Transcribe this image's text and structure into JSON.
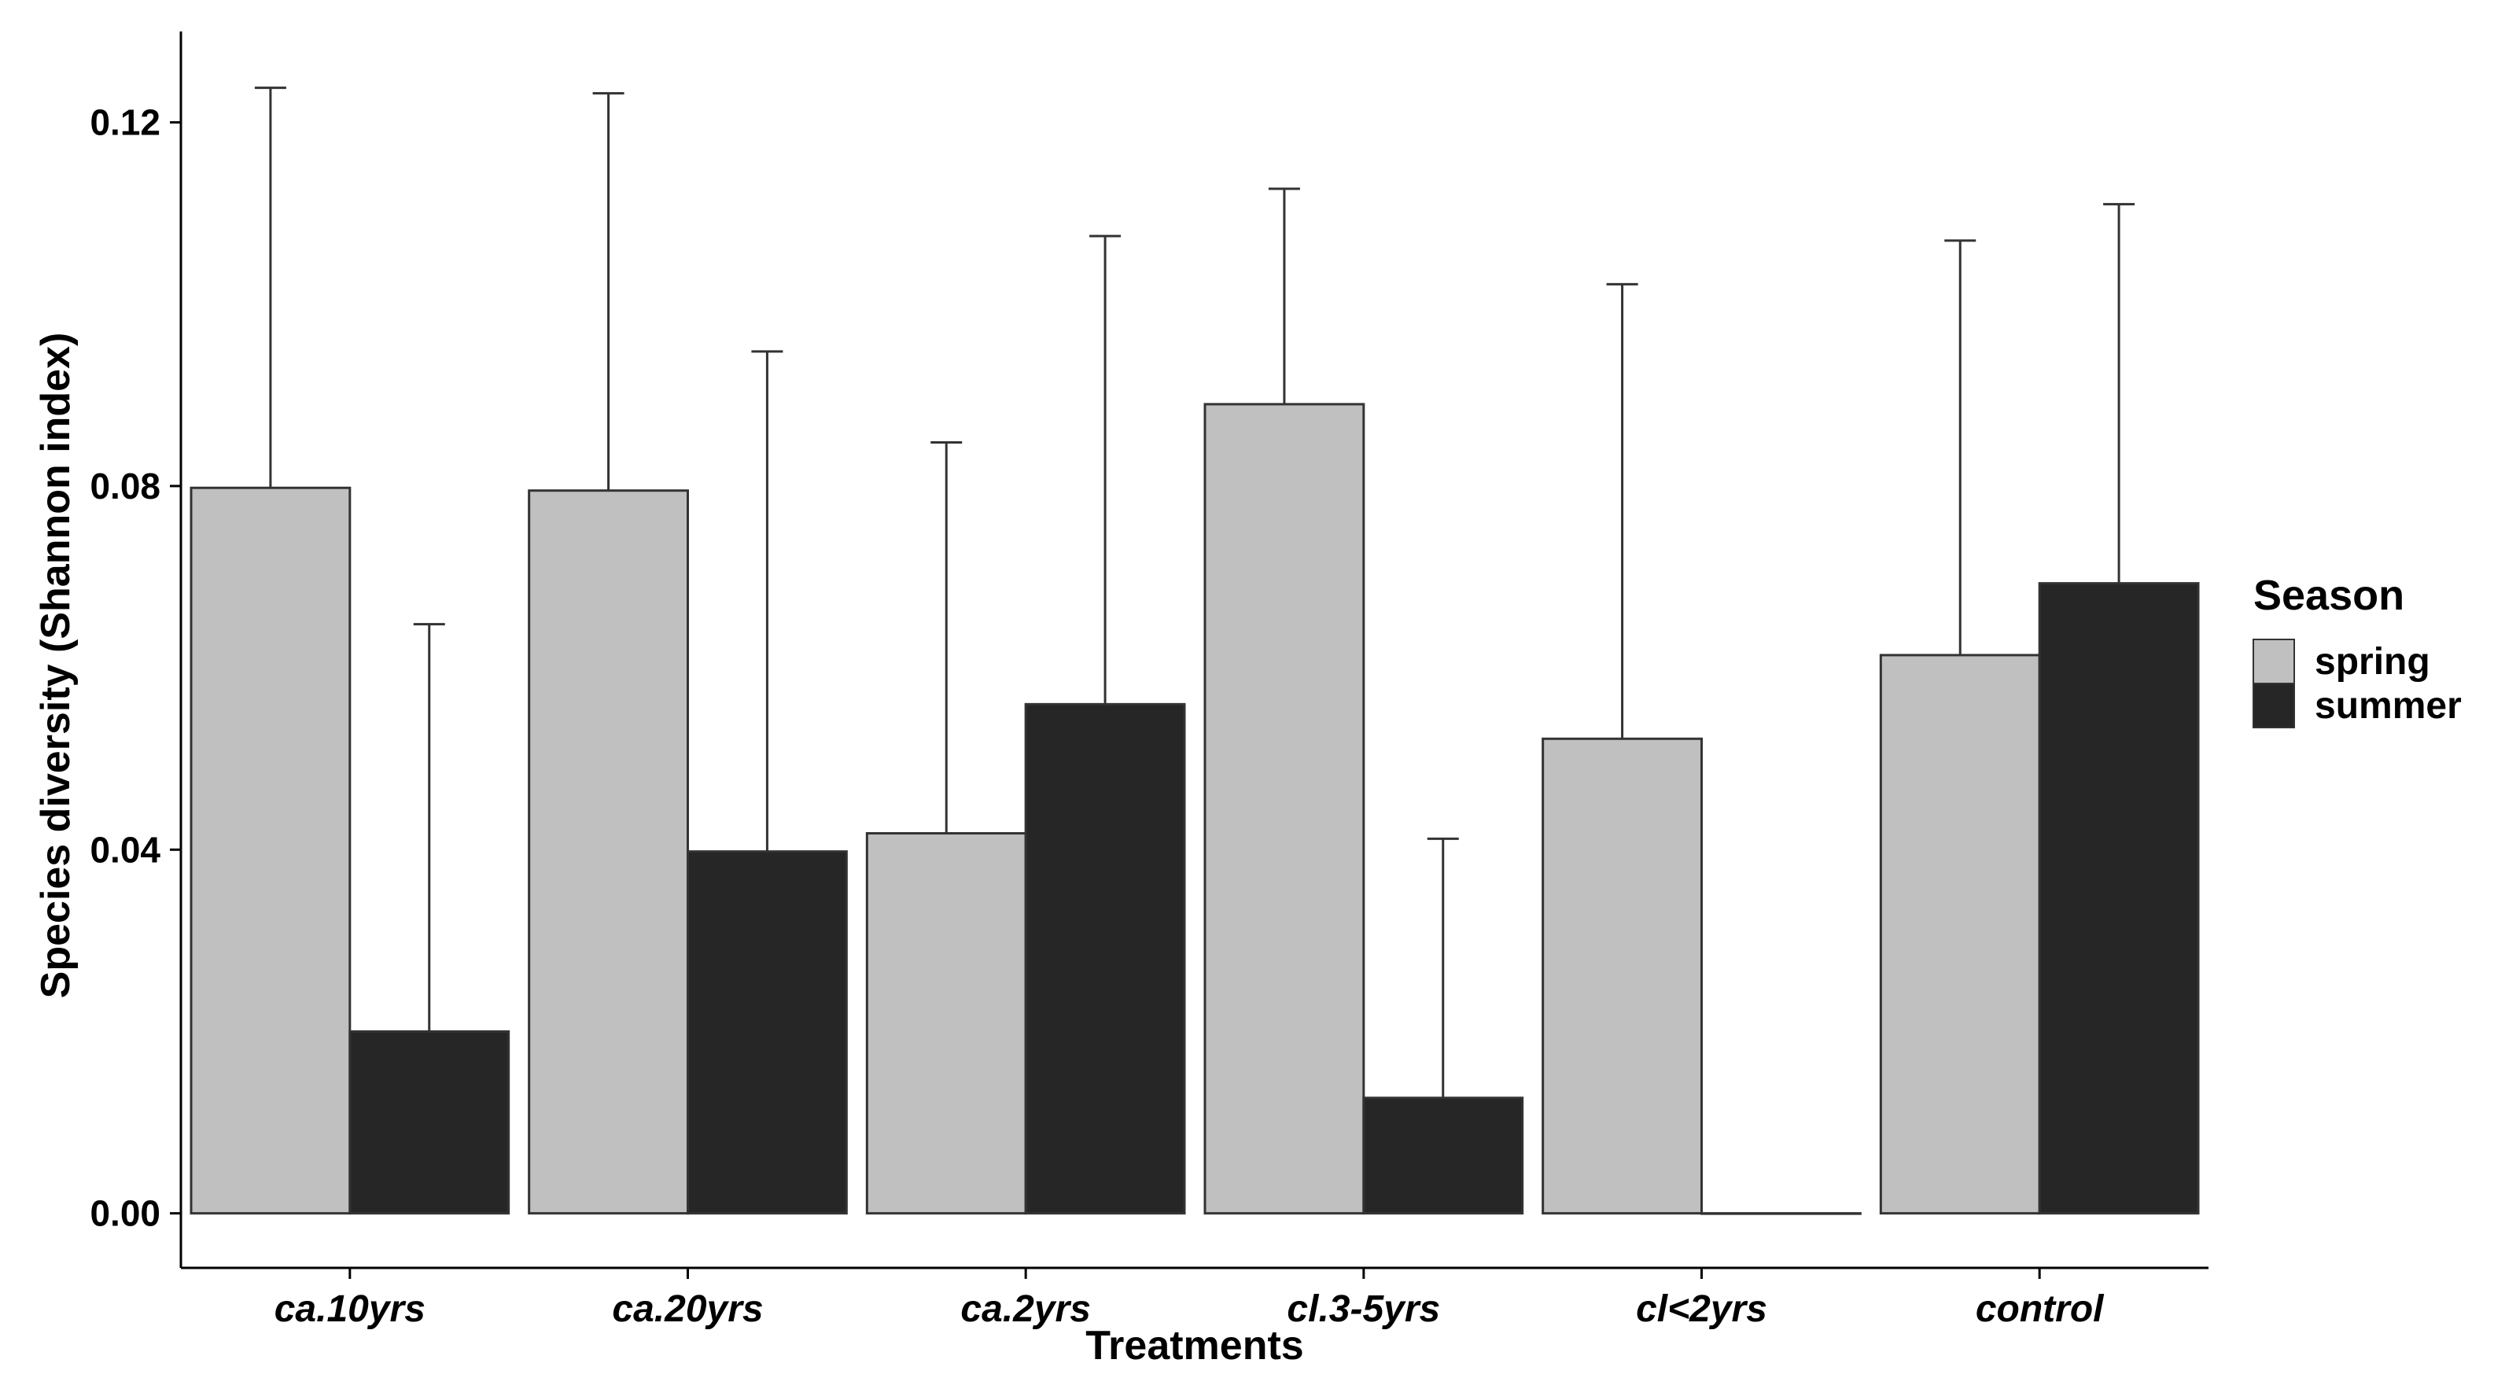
{
  "chart_data": {
    "type": "bar",
    "xlabel": "Treatments",
    "ylabel": "Species diversity (Shannon index)",
    "categories": [
      "ca.10yrs",
      "ca.20yrs",
      "ca.2yrs",
      "cl.3-5yrs",
      "cl<2yrs",
      "control"
    ],
    "yticks": [
      0.0,
      0.04,
      0.08,
      0.12
    ],
    "ytick_labels": [
      "0.00",
      "0.04",
      "0.08",
      "0.12"
    ],
    "ylim": [
      -0.006,
      0.13
    ],
    "grid": false,
    "legend": {
      "title": "Season",
      "placement": "right"
    },
    "series": [
      {
        "name": "spring",
        "color": "#c0c0c0",
        "values": [
          0.0798,
          0.0795,
          0.0418,
          0.089,
          0.0522,
          0.0614
        ],
        "error_upper": [
          0.1238,
          0.1232,
          0.0848,
          0.1127,
          0.1022,
          0.107
        ]
      },
      {
        "name": "summer",
        "color": "#262626",
        "values": [
          0.02,
          0.0398,
          0.056,
          0.0127,
          0.0,
          0.0693
        ],
        "error_upper": [
          0.0648,
          0.0948,
          0.1075,
          0.0412,
          0.0,
          0.111
        ]
      }
    ]
  }
}
